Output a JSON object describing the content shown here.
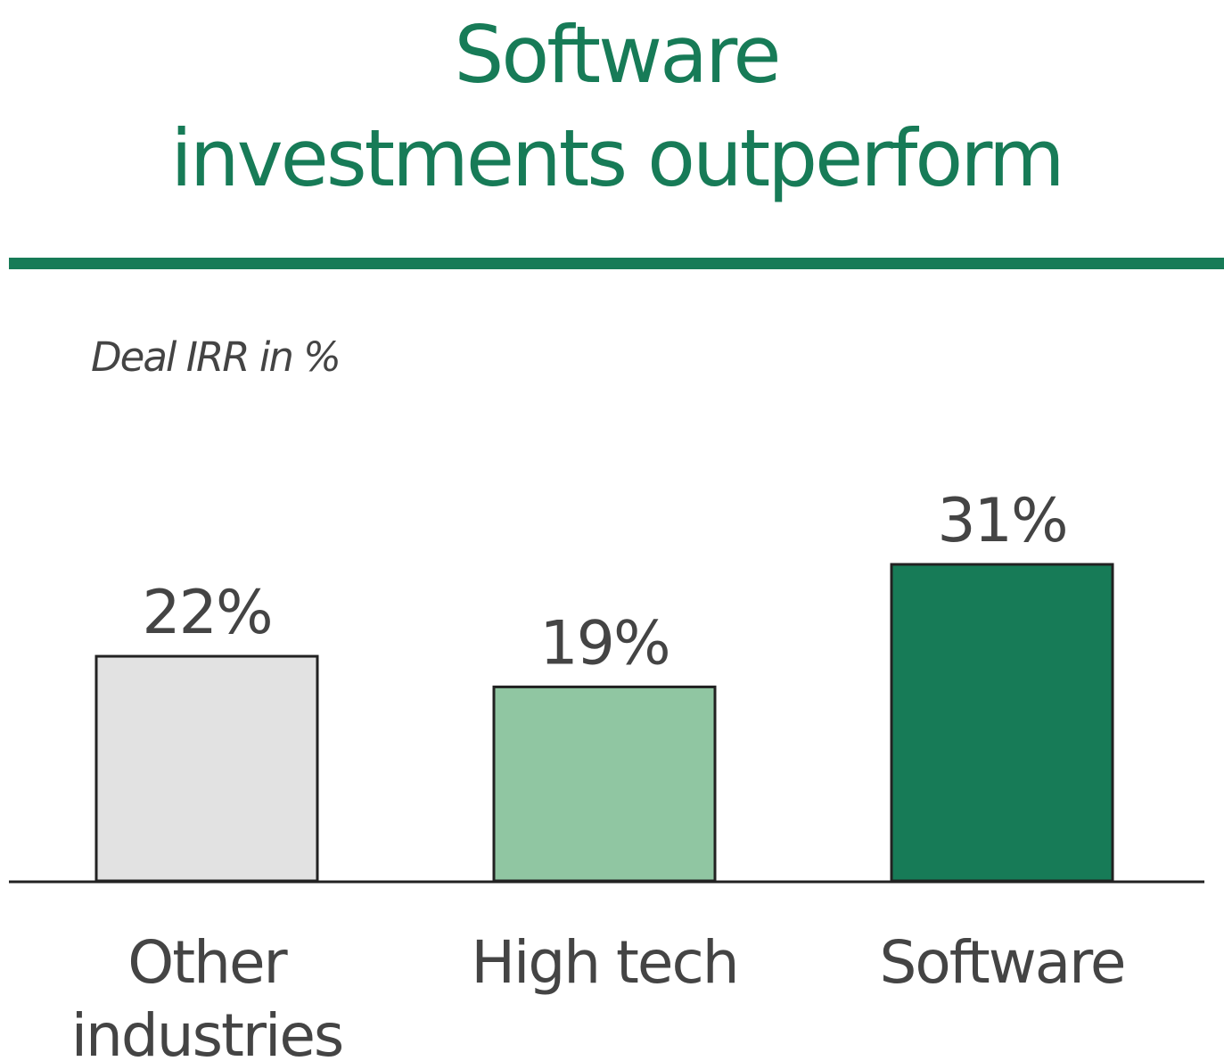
{
  "chart_data": {
    "type": "bar",
    "title": "Software investments outperform",
    "title_lines": [
      "Software",
      "investments outperform"
    ],
    "subtitle": "Deal IRR in %",
    "categories": [
      "Other industries",
      "High tech",
      "Software"
    ],
    "category_label_lines": [
      [
        "Other",
        "industries"
      ],
      [
        "High tech"
      ],
      [
        "Software"
      ]
    ],
    "values": [
      22,
      19,
      31
    ],
    "value_labels": [
      "22%",
      "19%",
      "31%"
    ],
    "bar_colors": [
      "#e2e2e2",
      "#90c6a2",
      "#177b57"
    ],
    "xlabel": "",
    "ylabel": "",
    "ylim": [
      0,
      31
    ],
    "grid": false,
    "legend": "none"
  },
  "colors": {
    "accent": "#177b57",
    "text": "#444444",
    "bar_outline": "#222222"
  }
}
